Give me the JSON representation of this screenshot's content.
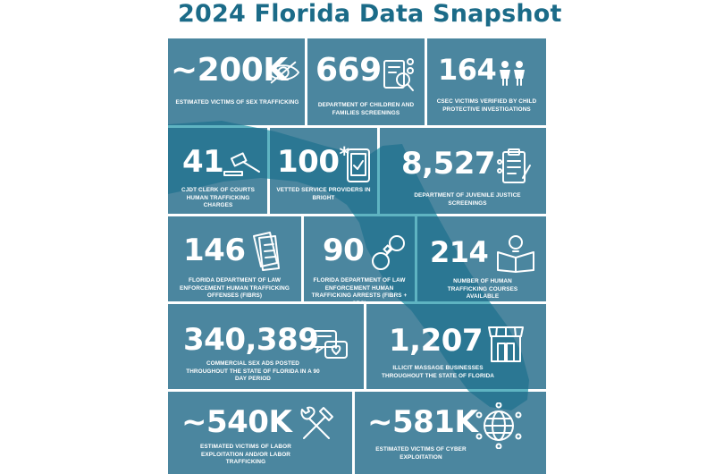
{
  "title": "2024 Florida Data Snapshot",
  "colors": {
    "title": "#1b6b88",
    "tile": "#1e6887",
    "map": "#5fb4c2"
  },
  "tiles": [
    {
      "value": "~200K",
      "label": "Estimated victims of sex trafficking",
      "icon": "eye-slash-icon"
    },
    {
      "value": "669",
      "label": "Department of Children and Families Screenings",
      "icon": "document-search-icon"
    },
    {
      "value": "164",
      "label": "CSEC victims verified by child protective investigations",
      "icon": "children-icon"
    },
    {
      "value": "41",
      "label": "CJDT Clerk of Courts Human Trafficking Charges",
      "icon": "gavel-icon"
    },
    {
      "value": "100",
      "suffix": "*",
      "label": "Vetted service providers in Bright",
      "icon": "tablet-check-icon"
    },
    {
      "value": "8,527",
      "label": "Department of Juvenile Justice Screenings",
      "icon": "clipboard-icon"
    },
    {
      "value": "146",
      "label": "Florida Department of Law Enforcement Human Trafficking Offenses (FIBRS)",
      "icon": "documents-icon"
    },
    {
      "value": "90",
      "label": "Florida Department of Law Enforcement Human Trafficking Arrests (FIBRS + SRS)",
      "icon": "handcuffs-icon"
    },
    {
      "value": "214",
      "label": "Number of Human Trafficking Courses Available",
      "icon": "book-lightbulb-icon"
    },
    {
      "value": "340,389",
      "label": "Commercial sex ads posted throughout the state of Florida in a 90 day period",
      "icon": "chat-heart-icon"
    },
    {
      "value": "1,207",
      "label": "Illicit massage businesses throughout the state of Florida",
      "icon": "storefront-icon"
    },
    {
      "value": "~540K",
      "label": "Estimated victims of labor exploitation and/or labor trafficking",
      "icon": "tools-icon"
    },
    {
      "value": "~581K",
      "label": "Estimated victims of cyber exploitation",
      "icon": "globe-network-icon"
    }
  ]
}
